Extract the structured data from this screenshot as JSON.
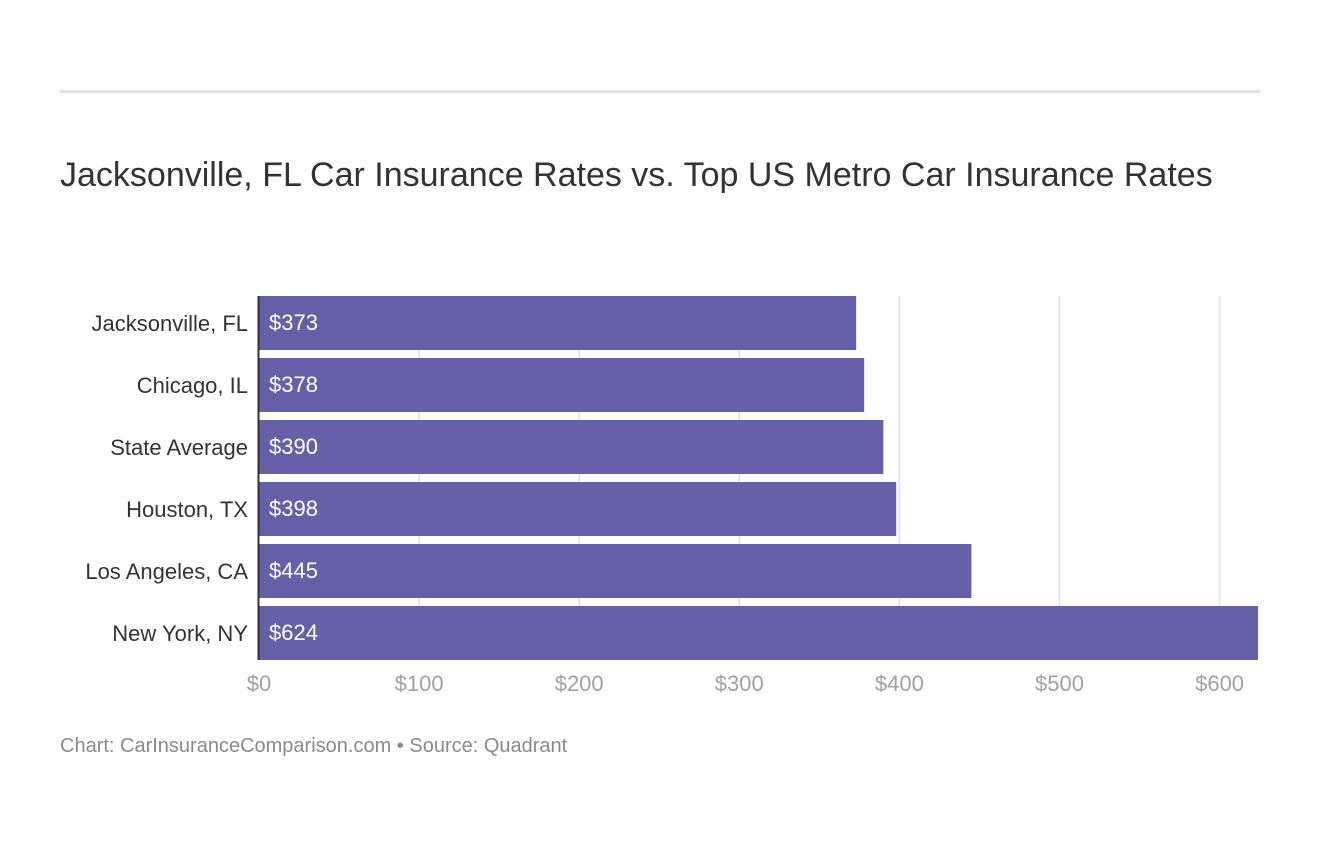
{
  "chart_data": {
    "type": "bar",
    "orientation": "horizontal",
    "title": "Jacksonville, FL Car Insurance Rates vs. Top US Metro Car Insurance Rates",
    "categories": [
      "Jacksonville, FL",
      "Chicago, IL",
      "State Average",
      "Houston, TX",
      "Los Angeles, CA",
      "New York, NY"
    ],
    "values": [
      373,
      378,
      390,
      398,
      445,
      624
    ],
    "value_labels": [
      "$373",
      "$378",
      "$390",
      "$398",
      "$445",
      "$624"
    ],
    "xticks": [
      0,
      100,
      200,
      300,
      400,
      500,
      600
    ],
    "xtick_labels": [
      "$0",
      "$100",
      "$200",
      "$300",
      "$400",
      "$500",
      "$600"
    ],
    "xlim": [
      0,
      624
    ],
    "grid": true,
    "legend": "none",
    "bar_color": "#6660a8",
    "grid_color": "#e6e6e6",
    "axis_color": "#333333"
  },
  "footer": {
    "text": "Chart: CarInsuranceComparison.com • Source: Quadrant"
  }
}
